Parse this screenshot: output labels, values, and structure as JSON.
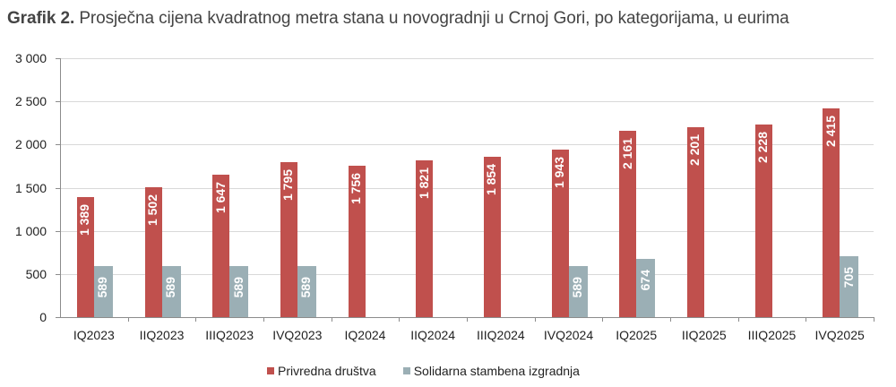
{
  "chart_data": {
    "type": "bar",
    "title_prefix": "Grafik 2.",
    "title": "Prosječna cijena kvadratnog metra stana u novogradnji u Crnoj Gori, po kategorijama, u eurima",
    "xlabel": "",
    "ylabel": "",
    "ylim": [
      0,
      3000
    ],
    "yticks": [
      "0",
      "500",
      "1 000",
      "1 500",
      "2 000",
      "2 500",
      "3 000"
    ],
    "ytick_values": [
      0,
      500,
      1000,
      1500,
      2000,
      2500,
      3000
    ],
    "grid": true,
    "legend_position": "bottom",
    "categories": [
      "IQ2023",
      "IIQ2023",
      "IIIQ2023",
      "IVQ2023",
      "IQ2024",
      "IIQ2024",
      "IIIQ2024",
      "IVQ2024",
      "IQ2025",
      "IIQ2025",
      "IIIQ2025",
      "IVQ2025"
    ],
    "series": [
      {
        "name": "Privredna društva",
        "color": "#c0504d",
        "values": [
          1389,
          1502,
          1647,
          1795,
          1756,
          1821,
          1854,
          1943,
          2161,
          2201,
          2228,
          2415
        ],
        "labels": [
          "1 389",
          "1 502",
          "1 647",
          "1 795",
          "1 756",
          "1 821",
          "1 854",
          "1 943",
          "2 161",
          "2 201",
          "2 228",
          "2 415"
        ]
      },
      {
        "name": "Solidarna stambena izgradnja",
        "color": "#9bafb5",
        "values": [
          589,
          589,
          589,
          589,
          null,
          null,
          null,
          589,
          674,
          null,
          null,
          705
        ],
        "labels": [
          "589",
          "589",
          "589",
          "589",
          null,
          null,
          null,
          "589",
          "674",
          null,
          null,
          "705"
        ]
      }
    ]
  }
}
